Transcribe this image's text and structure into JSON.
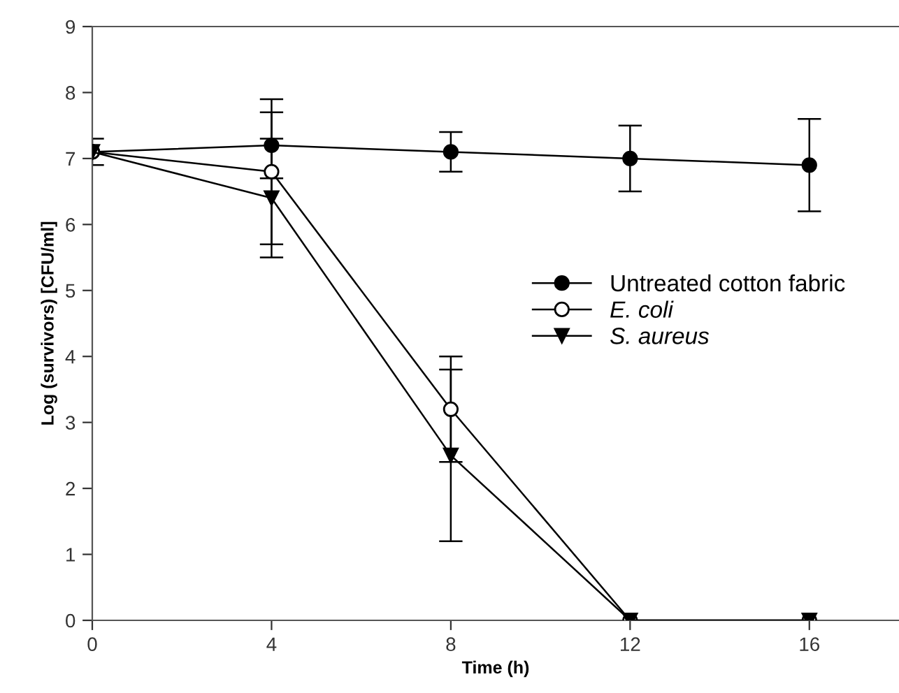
{
  "chart_data": {
    "type": "line",
    "xlabel": "Time (h)",
    "ylabel": "Log (survivors) [CFU/ml]",
    "x": [
      0,
      4,
      8,
      12,
      16
    ],
    "series": [
      {
        "name": "Untreated cotton fabric",
        "color": "#000000",
        "values": [
          7.1,
          7.2,
          7.1,
          7.0,
          6.9
        ],
        "errors": [
          0.2,
          0.5,
          0.3,
          0.5,
          0.7
        ],
        "marker": "circle"
      },
      {
        "name": "E. coli",
        "color": "#000000",
        "values": [
          7.1,
          6.8,
          3.2,
          0,
          0
        ],
        "errors": [
          null,
          1.1,
          0.8,
          null,
          null
        ],
        "marker": "open circle"
      },
      {
        "name": "S. aureus",
        "color": "#000000",
        "values": [
          7.1,
          6.4,
          2.5,
          0,
          0
        ],
        "errors": [
          null,
          0.9,
          1.3,
          null,
          null
        ],
        "marker": "triangle"
      }
    ],
    "xlim": [
      0,
      18
    ],
    "xticks": [
      0,
      4,
      8,
      12,
      16
    ],
    "ylim": [
      0,
      9
    ],
    "yticks": [
      0,
      1,
      2,
      3,
      4,
      5,
      6,
      7,
      8,
      9
    ],
    "grid": false,
    "legend": "right",
    "line_style": "solid"
  }
}
